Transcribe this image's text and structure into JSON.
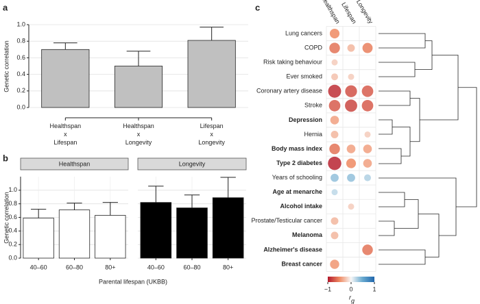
{
  "chart_data": [
    {
      "type": "bar",
      "panel": "a",
      "ylabel": "Genetic correlation",
      "categories": [
        "Healthspan\nx\nLifespan",
        "Healthspan\nx\nLongevity",
        "Lifespan\nx\nLongevity"
      ],
      "values": [
        0.7,
        0.5,
        0.81
      ],
      "errors": [
        0.08,
        0.18,
        0.16
      ],
      "color": "#c0c0c0",
      "ylim": [
        0,
        1
      ],
      "yticks": [
        {
          "value": 0,
          "label": "0.0"
        },
        0.2,
        0.4,
        0.6,
        0.8,
        {
          "value": 1,
          "label": "1.0"
        }
      ],
      "grid": true
    },
    {
      "type": "faceted_bar",
      "panel": "b",
      "ylabel": "Genetic correlation",
      "xlabel": "Parental lifespan (UKBB)",
      "categories": [
        "40–60",
        "60–80",
        "80+"
      ],
      "series": [
        {
          "name": "Healthspan",
          "color": "#ffffff",
          "values": [
            0.59,
            0.71,
            0.63
          ],
          "errors": [
            0.13,
            0.1,
            0.19
          ]
        },
        {
          "name": "Longevity",
          "color": "#000000",
          "values": [
            0.82,
            0.74,
            0.89
          ],
          "errors": [
            0.24,
            0.19,
            0.3
          ]
        }
      ],
      "ylim": [
        0,
        1.2
      ],
      "yticks": [
        {
          "value": 0,
          "label": "0.0"
        },
        0.2,
        0.4,
        0.6,
        0.8,
        {
          "value": 1,
          "label": "1.0"
        }
      ],
      "grid": true
    },
    {
      "type": "dot_matrix",
      "panel": "c",
      "categories": [
        "Lung cancers",
        "COPD",
        "Risk taking behaviour",
        "Ever smoked",
        "Coronary artery disease",
        "Stroke",
        "Depression",
        "Hernia",
        "Body mass index",
        "Type 2 diabetes",
        "Years of schooling",
        "Age at menarche",
        "Alcohol intake",
        "Prostate/Testicular cancer",
        "Melanoma",
        "Alzheimer's disease",
        "Breast cancer"
      ],
      "emphasis": [
        false,
        false,
        false,
        false,
        false,
        false,
        true,
        false,
        true,
        true,
        false,
        true,
        true,
        false,
        true,
        true,
        true
      ],
      "series": [
        {
          "name": "Healthspan",
          "values": [
            -0.5,
            -0.6,
            -0.2,
            -0.25,
            -0.9,
            -0.7,
            -0.4,
            -0.3,
            -0.6,
            -0.95,
            0.35,
            0.2,
            null,
            -0.3,
            -0.3,
            null,
            -0.45
          ]
        },
        {
          "name": "Lifespan",
          "values": [
            null,
            -0.3,
            null,
            -0.2,
            -0.75,
            -0.8,
            null,
            null,
            -0.4,
            -0.5,
            0.35,
            null,
            -0.2,
            null,
            null,
            null,
            null
          ]
        },
        {
          "name": "Longevity",
          "values": [
            null,
            -0.55,
            null,
            null,
            -0.7,
            -0.7,
            null,
            -0.2,
            -0.4,
            -0.4,
            0.25,
            null,
            null,
            null,
            null,
            -0.6,
            null
          ]
        }
      ],
      "clim": [
        -1,
        1
      ],
      "cticks": [
        {
          "value": -1,
          "label": "−1"
        },
        0,
        1
      ],
      "colormap": [
        "#b2182b",
        "#ef8a62",
        "#f7f7f7",
        "#67a9cf",
        "#2166ac"
      ],
      "colorbar_label": "r",
      "colorbar_label_sub": "g"
    }
  ]
}
